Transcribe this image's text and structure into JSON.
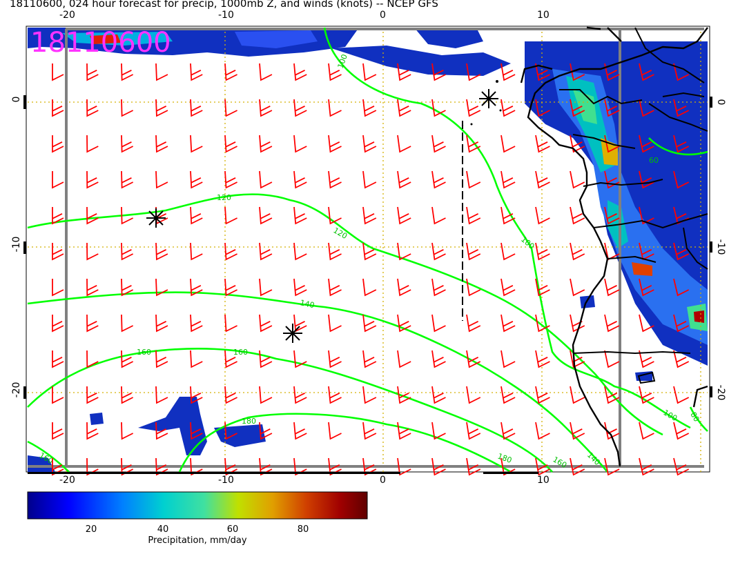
{
  "title": "18110600, 024 hour forecast for precip, 1000mb Z, and winds (knots) -- NCEP GFS",
  "run_stamp": "18110600",
  "axes": {
    "lon_ticks": [
      "-20",
      "-10",
      "0",
      "10"
    ],
    "lat_ticks": [
      "0",
      "-10",
      "-20"
    ]
  },
  "contour_labels": [
    "100",
    "120",
    "120",
    "100",
    "140",
    "160",
    "160",
    "180",
    "180",
    "160",
    "160",
    "140",
    "100",
    "60",
    "80",
    "160"
  ],
  "colorbar": {
    "ticks": [
      "20",
      "40",
      "60",
      "80"
    ],
    "title": "Precipitation, mm/day",
    "colors": [
      "#00008b",
      "#0000ff",
      "#0080ff",
      "#00d0d0",
      "#40e0a0",
      "#c0e000",
      "#e0a000",
      "#d04000",
      "#a00000",
      "#600000"
    ]
  },
  "colors": {
    "height_contour": "#00ff00",
    "wind_barb": "#ff0000",
    "grid": "#d4b000",
    "coast": "#000000",
    "frame": "#808080"
  }
}
